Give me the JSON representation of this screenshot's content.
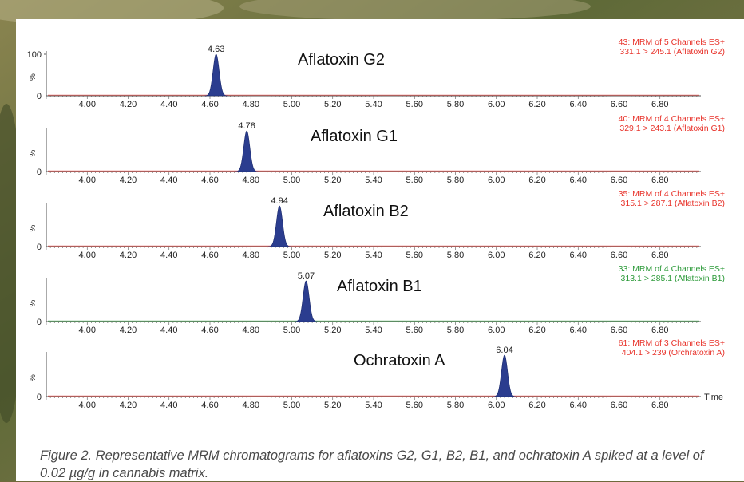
{
  "chart_data": {
    "type": "line",
    "stacked_panels": true,
    "x_ticks": [
      "4.00",
      "4.20",
      "4.40",
      "4.60",
      "4.80",
      "5.00",
      "5.20",
      "5.40",
      "5.60",
      "5.80",
      "6.00",
      "6.20",
      "6.40",
      "6.60",
      "6.80"
    ],
    "x_range": [
      3.8,
      7.0
    ],
    "xlabel": "Time",
    "panels": [
      {
        "title": "Aflatoxin G2",
        "peak_time": 4.63,
        "peak_label": "4.63",
        "channel_line1": "43: MRM of 5 Channels ES+",
        "channel_line2": "331.1 > 245.1 (Aflatoxin G2)",
        "channel_color": "#e8332b",
        "ylabel": "%",
        "ytick_top": "100",
        "ytick_bottom": "0",
        "y_range": [
          0,
          100
        ]
      },
      {
        "title": "Aflatoxin G1",
        "peak_time": 4.78,
        "peak_label": "4.78",
        "channel_line1": "40: MRM of 4 Channels ES+",
        "channel_line2": "329.1 > 243.1 (Aflatoxin G1)",
        "channel_color": "#e8332b",
        "ylabel": "%",
        "ytick_bottom": "0",
        "y_range": [
          0,
          100
        ]
      },
      {
        "title": "Aflatoxin B2",
        "peak_time": 4.94,
        "peak_label": "4.94",
        "channel_line1": "35: MRM of 4 Channels ES+",
        "channel_line2": "315.1 > 287.1 (Aflatoxin B2)",
        "channel_color": "#e8332b",
        "ylabel": "%",
        "ytick_bottom": "0",
        "y_range": [
          0,
          100
        ]
      },
      {
        "title": "Aflatoxin B1",
        "peak_time": 5.07,
        "peak_label": "5.07",
        "channel_line1": "33: MRM of 4 Channels ES+",
        "channel_line2": "313.1 > 285.1 (Aflatoxin B1)",
        "channel_color": "#2e9b3b",
        "ylabel": "%",
        "ytick_bottom": "0",
        "y_range": [
          0,
          100
        ]
      },
      {
        "title": "Ochratoxin A",
        "peak_time": 6.04,
        "peak_label": "6.04",
        "channel_line1": "61: MRM of 3 Channels ES+",
        "channel_line2": "404.1 > 239 (Orchratoxin A)",
        "channel_color": "#e8332b",
        "ylabel": "%",
        "ytick_bottom": "0",
        "y_range": [
          0,
          100
        ]
      }
    ]
  },
  "colors": {
    "peak_fill": "#2b3d8f",
    "axis": "#555555",
    "text": "#222222"
  },
  "caption": "Figure 2. Representative MRM chromatograms for aflatoxins G2, G1, B2, B1, and ochratoxin A spiked at a level of 0.02 µg/g in cannabis matrix."
}
